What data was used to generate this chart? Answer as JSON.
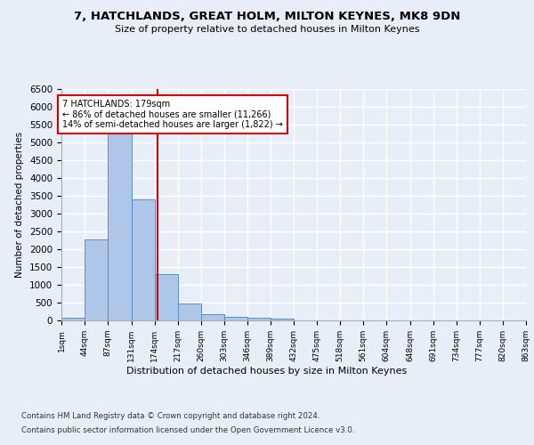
{
  "title1": "7, HATCHLANDS, GREAT HOLM, MILTON KEYNES, MK8 9DN",
  "title2": "Size of property relative to detached houses in Milton Keynes",
  "xlabel": "Distribution of detached houses by size in Milton Keynes",
  "ylabel": "Number of detached properties",
  "footnote1": "Contains HM Land Registry data © Crown copyright and database right 2024.",
  "footnote2": "Contains public sector information licensed under the Open Government Licence v3.0.",
  "annotation_title": "7 HATCHLANDS: 179sqm",
  "annotation_line1": "← 86% of detached houses are smaller (11,266)",
  "annotation_line2": "14% of semi-detached houses are larger (1,822) →",
  "property_size": 179,
  "bar_color": "#aec6e8",
  "bar_edge_color": "#5a8fc0",
  "vline_color": "#cc0000",
  "annotation_box_color": "#ffffff",
  "annotation_box_edge": "#cc0000",
  "bin_edges": [
    1,
    44,
    87,
    131,
    174,
    217,
    260,
    303,
    346,
    389,
    432,
    475,
    518,
    561,
    604,
    648,
    691,
    734,
    777,
    820,
    863
  ],
  "bar_heights": [
    70,
    2270,
    5430,
    3390,
    1310,
    480,
    170,
    100,
    75,
    50,
    0,
    0,
    0,
    0,
    0,
    0,
    0,
    0,
    0,
    0
  ],
  "ylim": [
    0,
    6500
  ],
  "yticks": [
    0,
    500,
    1000,
    1500,
    2000,
    2500,
    3000,
    3500,
    4000,
    4500,
    5000,
    5500,
    6000,
    6500
  ],
  "background_color": "#e8eef8",
  "grid_color": "#ffffff"
}
